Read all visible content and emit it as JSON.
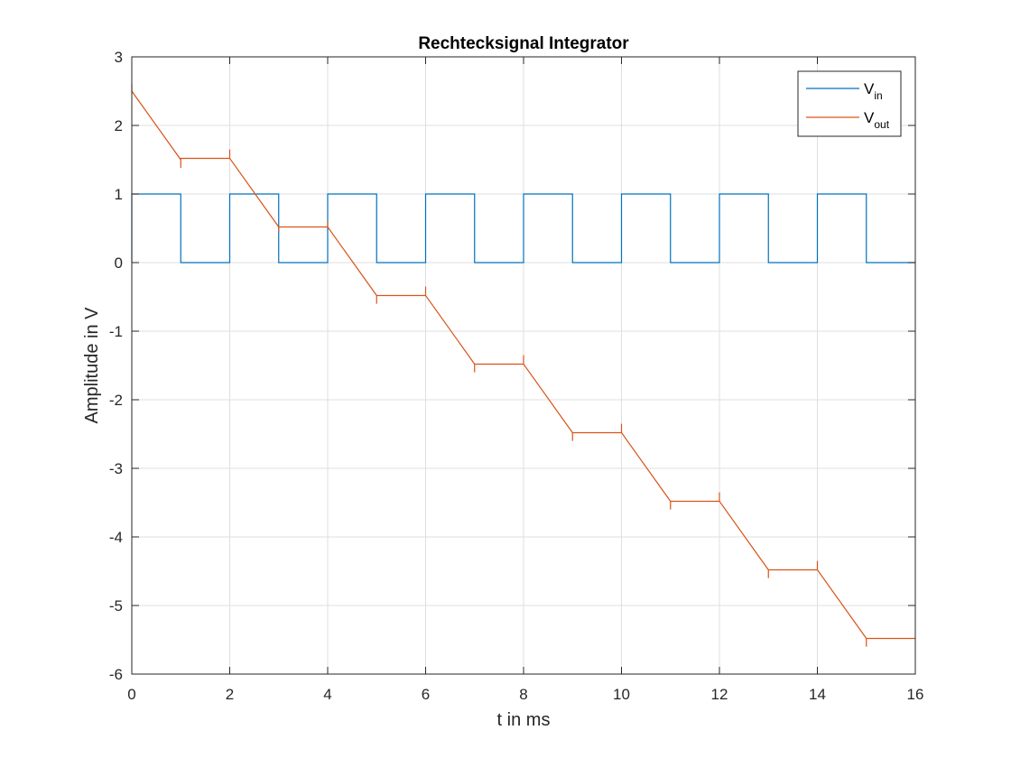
{
  "chart_data": {
    "type": "line",
    "title": "Rechtecksignal Integrator",
    "xlabel": "t in ms",
    "ylabel": "Amplitude in V",
    "xlim": [
      0,
      16
    ],
    "ylim": [
      -6,
      3
    ],
    "xticks": [
      0,
      2,
      4,
      6,
      8,
      10,
      12,
      14,
      16
    ],
    "yticks": [
      -6,
      -5,
      -4,
      -3,
      -2,
      -1,
      0,
      1,
      2,
      3
    ],
    "xtick_labels": [
      "0",
      "2",
      "4",
      "6",
      "8",
      "10",
      "12",
      "14",
      "16"
    ],
    "ytick_labels": [
      "-6",
      "-5",
      "-4",
      "-3",
      "-2",
      "-1",
      "0",
      "1",
      "2",
      "3"
    ],
    "grid": true,
    "legend_position": "top-right",
    "series": [
      {
        "name": "V_in",
        "legend_main": "V",
        "legend_sub": "in",
        "color": "#0072BD",
        "step": true,
        "x": [
          0,
          0,
          1,
          1,
          2,
          2,
          3,
          3,
          4,
          4,
          5,
          5,
          6,
          6,
          7,
          7,
          8,
          8,
          9,
          9,
          10,
          10,
          11,
          11,
          12,
          12,
          13,
          13,
          14,
          14,
          15,
          15,
          16
        ],
        "y": [
          0,
          1,
          1,
          0,
          0,
          1,
          1,
          0,
          0,
          1,
          1,
          0,
          0,
          1,
          1,
          0,
          0,
          1,
          1,
          0,
          0,
          1,
          1,
          0,
          0,
          1,
          1,
          0,
          0,
          1,
          1,
          0,
          0
        ]
      },
      {
        "name": "V_out",
        "legend_main": "V",
        "legend_sub": "out",
        "color": "#D95319",
        "x": [
          0,
          0,
          1,
          1,
          1,
          2,
          2,
          2,
          3,
          3,
          3,
          4,
          4,
          4,
          5,
          5,
          5,
          6,
          6,
          6,
          7,
          7,
          7,
          8,
          8,
          8,
          9,
          9,
          9,
          10,
          10,
          10,
          11,
          11,
          11,
          12,
          12,
          12,
          13,
          13,
          13,
          14,
          14,
          14,
          15,
          15,
          15,
          16
        ],
        "y": [
          2.6,
          2.5,
          1.5,
          1.38,
          1.52,
          1.52,
          1.65,
          1.52,
          0.52,
          0.45,
          0.52,
          0.52,
          0.6,
          0.52,
          -0.48,
          -0.6,
          -0.48,
          -0.48,
          -0.35,
          -0.48,
          -1.48,
          -1.6,
          -1.48,
          -1.48,
          -1.35,
          -1.48,
          -2.48,
          -2.6,
          -2.48,
          -2.48,
          -2.35,
          -2.48,
          -3.48,
          -3.6,
          -3.48,
          -3.48,
          -3.35,
          -3.48,
          -4.48,
          -4.6,
          -4.48,
          -4.48,
          -4.35,
          -4.48,
          -5.48,
          -5.6,
          -5.48,
          -5.48
        ]
      }
    ]
  }
}
